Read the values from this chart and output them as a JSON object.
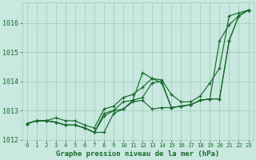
{
  "title": "Graphe pression niveau de la mer (hPa)",
  "background_color": "#c8e8e0",
  "plot_bg_color": "#c8e8e0",
  "grid_color": "#a0c8b8",
  "line_color": "#1a6b2a",
  "text_color": "#1a6b2a",
  "ylim": [
    1012.0,
    1016.7
  ],
  "xlim": [
    -0.5,
    23.5
  ],
  "yticks": [
    1012,
    1013,
    1014,
    1015,
    1016
  ],
  "xtick_labels": [
    "0",
    "1",
    "2",
    "3",
    "4",
    "5",
    "6",
    "7",
    "8",
    "9",
    "10",
    "11",
    "12",
    "13",
    "14",
    "15",
    "16",
    "17",
    "18",
    "19",
    "20",
    "21",
    "22",
    "23"
  ],
  "series": [
    [
      1012.55,
      1012.65,
      1012.65,
      1012.75,
      1012.65,
      1012.65,
      1012.5,
      1012.4,
      1013.05,
      1013.15,
      1013.45,
      1013.55,
      1013.8,
      1014.1,
      1014.05,
      1013.55,
      1013.3,
      1013.3,
      1013.5,
      1013.95,
      1014.45,
      1016.25,
      1016.35,
      1016.45
    ],
    [
      1012.55,
      1012.65,
      1012.65,
      1012.6,
      1012.5,
      1012.5,
      1012.4,
      1012.25,
      1012.25,
      1012.9,
      1013.05,
      1013.3,
      1013.35,
      1013.05,
      1013.1,
      1013.1,
      1013.15,
      1013.2,
      1013.35,
      1013.4,
      1013.4,
      1015.4,
      1016.25,
      1016.45
    ],
    [
      1012.55,
      1012.65,
      1012.65,
      1012.6,
      1012.5,
      1012.5,
      1012.4,
      1012.25,
      1012.8,
      1013.0,
      1013.3,
      1013.35,
      1014.3,
      1014.1,
      1013.95,
      1013.1,
      1013.15,
      1013.2,
      1013.35,
      1013.4,
      1015.4,
      1015.95,
      1016.25,
      1016.45
    ],
    [
      1012.55,
      1012.65,
      1012.65,
      1012.6,
      1012.5,
      1012.5,
      1012.4,
      1012.25,
      1012.9,
      1013.0,
      1013.05,
      1013.35,
      1013.45,
      1013.95,
      1014.0,
      1013.1,
      1013.15,
      1013.2,
      1013.35,
      1013.4,
      1013.4,
      1015.4,
      1016.25,
      1016.45
    ]
  ]
}
